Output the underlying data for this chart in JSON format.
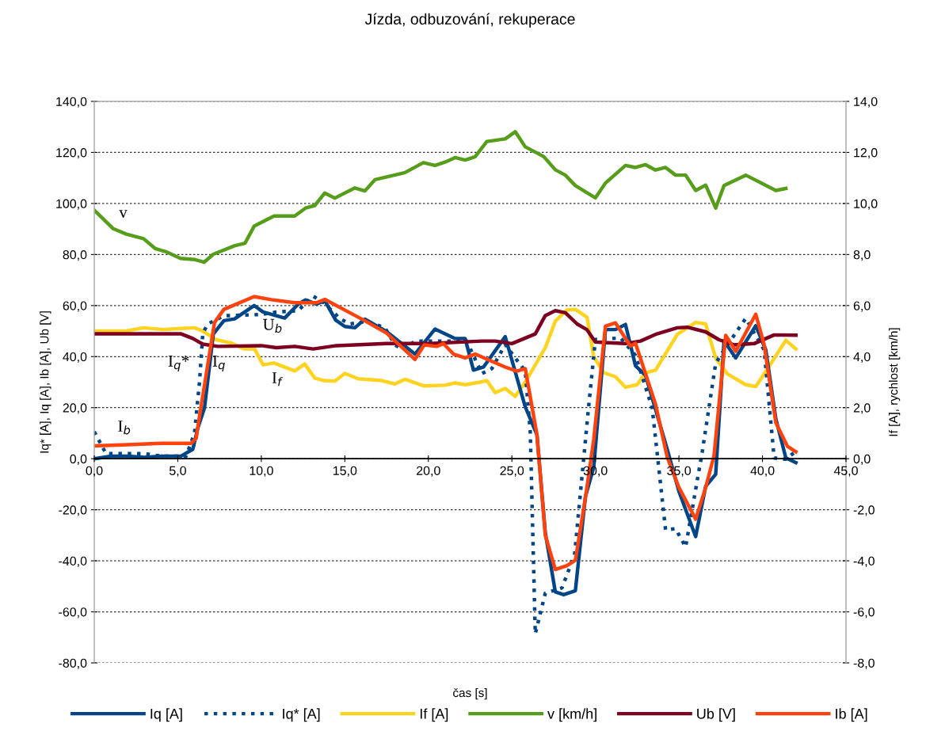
{
  "chart_data": {
    "type": "line",
    "title": "Jízda, odbuzování, rekuperace",
    "xlabel": "čas [s]",
    "ylabel": "Iq* [A], Iq [A], Ib [A], Ub [V]",
    "y2label": "If [A], rychlost [km/h]",
    "xlim": [
      0,
      45
    ],
    "xticks": [
      {
        "value": 0,
        "label": "0,0"
      },
      {
        "value": 5,
        "label": "5,0"
      },
      {
        "value": 10,
        "label": "10,0"
      },
      {
        "value": 15,
        "label": "15,0"
      },
      {
        "value": 20,
        "label": "20,0"
      },
      {
        "value": 25,
        "label": "25,0"
      },
      {
        "value": 30,
        "label": "30,0"
      },
      {
        "value": 35,
        "label": "35,0"
      },
      {
        "value": 40,
        "label": "40,0"
      },
      {
        "value": 45,
        "label": "45,0"
      }
    ],
    "ylim": [
      -80,
      140
    ],
    "yticks": [
      {
        "value": -80,
        "label": "-80,0"
      },
      {
        "value": -60,
        "label": "-60,0"
      },
      {
        "value": -40,
        "label": "-40,0"
      },
      {
        "value": -20,
        "label": "-20,0"
      },
      {
        "value": 0,
        "label": "0,0"
      },
      {
        "value": 20,
        "label": "20,0"
      },
      {
        "value": 40,
        "label": "40,0"
      },
      {
        "value": 60,
        "label": "60,0"
      },
      {
        "value": 80,
        "label": "80,0"
      },
      {
        "value": 100,
        "label": "100,0"
      },
      {
        "value": 120,
        "label": "120,0"
      },
      {
        "value": 140,
        "label": "140,0"
      }
    ],
    "y2lim": [
      -8,
      14
    ],
    "y2ticks": [
      {
        "value": -8,
        "label": "-8,0"
      },
      {
        "value": -6,
        "label": "-6,0"
      },
      {
        "value": -4,
        "label": "-4,0"
      },
      {
        "value": -2,
        "label": "-2,0"
      },
      {
        "value": 0,
        "label": "0,0"
      },
      {
        "value": 2,
        "label": "2,0"
      },
      {
        "value": 4,
        "label": "4,0"
      },
      {
        "value": 6,
        "label": "6,0"
      },
      {
        "value": 8,
        "label": "8,0"
      },
      {
        "value": 10,
        "label": "10,0"
      },
      {
        "value": 12,
        "label": "12,0"
      },
      {
        "value": 14,
        "label": "14,0"
      }
    ],
    "grid": true,
    "legend": "bottom",
    "marker": "none",
    "series": [
      {
        "name": "Iq [A]",
        "color": "#004586",
        "line_style": "solid",
        "x": [
          0,
          1,
          2,
          3,
          4,
          5.2,
          5.9,
          6.2,
          6.6,
          7.13,
          7.76,
          8.4,
          9.57,
          10.1,
          11.4,
          12.2,
          12.65,
          13.3,
          13.8,
          14.45,
          15.0,
          15.6,
          16.2,
          17.5,
          19.2,
          20.4,
          21.6,
          22.2,
          22.7,
          23.3,
          24.6,
          25.8,
          26.5,
          27.0,
          27.6,
          28.1,
          28.8,
          29.4,
          29.9,
          30.6,
          31.2,
          31.8,
          32.4,
          33.0,
          34.3,
          35.0,
          36.0,
          36.6,
          37.2,
          37.7,
          38.4,
          39.6,
          40.2,
          40.8,
          41.4,
          42.0
        ],
        "values": [
          0,
          1,
          1,
          0.5,
          1,
          1,
          3.7,
          12,
          20,
          48.9,
          54.1,
          54.8,
          60,
          57.5,
          55.1,
          60.5,
          62.2,
          60.6,
          61.9,
          54.3,
          51.8,
          51.3,
          54.7,
          49.8,
          41,
          50.8,
          47.1,
          47.1,
          34.7,
          35.9,
          47.8,
          20.3,
          9.4,
          -29,
          -52.2,
          -53.3,
          -51.7,
          -14.9,
          -3.3,
          50.6,
          50.6,
          52.6,
          36.4,
          32.7,
          3.7,
          -12.8,
          -30.5,
          -10.8,
          -6.1,
          46.2,
          39.5,
          52.1,
          42.6,
          15.6,
          0.3,
          -1.5
        ]
      },
      {
        "name": "Iq* [A]",
        "color": "#004586",
        "line_style": "dotted",
        "x": [
          0,
          0.7,
          2,
          3,
          4,
          5.5,
          6.0,
          6.3,
          6.5,
          6.8,
          7.76,
          10.0,
          10.9,
          12.2,
          13.1,
          13.75,
          14.7,
          15.3,
          16.3,
          17.4,
          18.0,
          18.5,
          19.2,
          20.1,
          22.3,
          23.2,
          23.8,
          24.6,
          25.8,
          26.1,
          26.4,
          27.0,
          28.0,
          28.75,
          29.6,
          30.0,
          31.5,
          32.4,
          33.4,
          34.2,
          34.8,
          35.4,
          36.4,
          37.2,
          37.7,
          39.0,
          40.1,
          40.7,
          41.4,
          42.0
        ],
        "values": [
          10.6,
          2,
          2,
          2,
          1,
          1,
          10,
          30,
          49.2,
          52.8,
          56,
          56.5,
          57.5,
          58,
          63.7,
          61.1,
          54.9,
          52.8,
          53.8,
          51.3,
          44.6,
          42.7,
          46.1,
          46.1,
          46.1,
          33.3,
          35.3,
          44.7,
          34.3,
          10.5,
          -68.6,
          -52.7,
          -50.6,
          -37.7,
          20.8,
          46.7,
          47.3,
          40.5,
          19.8,
          -27.9,
          -27.4,
          -34.6,
          2.9,
          37.4,
          42.6,
          55,
          42.6,
          0.3,
          -0.2,
          2.9
        ]
      },
      {
        "name": "If [A]",
        "color": "#ffd320",
        "line_style": "solid",
        "axis": "y2",
        "x": [
          0,
          1.9,
          2.95,
          4.1,
          5.2,
          6.0,
          6.5,
          7.3,
          8.15,
          9.0,
          9.6,
          10.1,
          10.76,
          12.0,
          12.6,
          13.2,
          13.75,
          14.4,
          15.0,
          15.8,
          17.2,
          18.0,
          18.6,
          19.75,
          21.0,
          21.6,
          22.2,
          23.1,
          23.5,
          24.0,
          24.6,
          25.2,
          25.8,
          27.0,
          27.6,
          28.3,
          28.8,
          29.5,
          29.9,
          30.5,
          31.2,
          31.8,
          32.5,
          33.0,
          33.6,
          34.9,
          36.0,
          36.6,
          37.2,
          37.9,
          39.0,
          39.6,
          40.3,
          41.4,
          42.0
        ],
        "values": [
          5.0,
          5.0,
          5.13,
          5.06,
          5.1,
          5.13,
          5.0,
          4.66,
          4.54,
          4.3,
          4.3,
          3.68,
          3.75,
          3.44,
          3.71,
          3.16,
          3.06,
          3.04,
          3.34,
          3.13,
          3.06,
          2.93,
          3.11,
          2.85,
          2.88,
          2.97,
          2.9,
          3.0,
          3.06,
          2.59,
          2.75,
          2.44,
          3.0,
          4.35,
          5.39,
          5.83,
          5.85,
          5.54,
          3.99,
          3.37,
          3.21,
          2.8,
          2.9,
          3.37,
          3.47,
          4.87,
          5.34,
          5.28,
          3.94,
          3.32,
          2.9,
          2.83,
          3.52,
          4.64,
          4.3
        ]
      },
      {
        "name": "v [km/h]",
        "color": "#579d1c",
        "line_style": "solid",
        "axis": "y2",
        "x": [
          0,
          1.14,
          1.92,
          2.95,
          3.66,
          4.29,
          5.16,
          6.03,
          6.58,
          7.13,
          8.39,
          9.02,
          9.57,
          10.76,
          12.0,
          12.65,
          13.2,
          13.8,
          14.4,
          15.6,
          16.2,
          16.8,
          18.6,
          19.7,
          20.4,
          21.0,
          21.6,
          22.2,
          22.8,
          23.5,
          24.6,
          25.2,
          25.8,
          26.9,
          27.6,
          28.2,
          28.8,
          30.0,
          30.6,
          31.8,
          32.4,
          33.0,
          33.6,
          34.2,
          34.8,
          35.4,
          36.0,
          36.6,
          37.2,
          37.7,
          39.0,
          40.8,
          41.4
        ],
        "values": [
          9.74,
          9.01,
          8.8,
          8.62,
          8.23,
          8.11,
          7.85,
          7.8,
          7.7,
          8.01,
          8.34,
          8.44,
          9.11,
          9.51,
          9.51,
          9.82,
          9.92,
          10.41,
          10.21,
          10.61,
          10.49,
          10.93,
          11.21,
          11.6,
          11.49,
          11.62,
          11.8,
          11.7,
          11.83,
          12.43,
          12.53,
          12.81,
          12.22,
          11.84,
          11.32,
          11.11,
          10.7,
          10.22,
          10.8,
          11.49,
          11.41,
          11.52,
          11.31,
          11.41,
          11.11,
          11.11,
          10.51,
          10.72,
          9.82,
          10.7,
          11.11,
          10.51,
          10.59
        ]
      },
      {
        "name": "Ub [V]",
        "color": "#7e0021",
        "line_style": "solid",
        "x": [
          0,
          5.2,
          5.9,
          6.5,
          7.4,
          10.0,
          10.9,
          12.0,
          13.1,
          14.5,
          17.5,
          20.1,
          23.2,
          24.0,
          25.0,
          26.4,
          27.0,
          27.6,
          28.2,
          28.9,
          29.5,
          30.0,
          31.8,
          32.7,
          33.6,
          34.9,
          35.5,
          36.6,
          37.4,
          38.3,
          39.5,
          40.7,
          42.0
        ],
        "values": [
          48.9,
          48.9,
          47.1,
          44.9,
          44,
          44.3,
          43.5,
          44,
          43,
          44.3,
          45.1,
          45.1,
          46.1,
          46.1,
          45.1,
          48.9,
          56.1,
          58,
          57.2,
          52.8,
          50.5,
          45.7,
          45.1,
          46.1,
          48.7,
          51.3,
          51.5,
          49.7,
          46.6,
          44.6,
          45.1,
          48.5,
          48.4
        ]
      },
      {
        "name": "Ib [A]",
        "color": "#ff420e",
        "line_style": "solid",
        "x": [
          0,
          2,
          4,
          5.2,
          5.8,
          6.1,
          6.2,
          7.2,
          7.76,
          9.57,
          10.6,
          12.0,
          13.3,
          13.8,
          15.5,
          16.1,
          17.5,
          19.2,
          19.75,
          20.5,
          20.9,
          21.5,
          22.2,
          22.8,
          24.6,
          25.3,
          25.8,
          26.5,
          27.0,
          27.6,
          28.3,
          28.8,
          29.4,
          29.9,
          30.6,
          31.2,
          32.1,
          32.4,
          33.6,
          34.3,
          35.0,
          36.0,
          36.6,
          37.1,
          37.8,
          38.4,
          39.6,
          40.1,
          40.8,
          41.5,
          42.0
        ],
        "values": [
          5,
          5.5,
          6,
          6,
          6,
          8,
          12.5,
          53.4,
          58.5,
          63.5,
          62.3,
          61.1,
          61.1,
          62.4,
          56.5,
          54.4,
          49.2,
          38.9,
          44.6,
          44,
          45.1,
          41,
          39.5,
          41,
          35.9,
          34.3,
          35.3,
          9.4,
          -30,
          -43.4,
          -41.9,
          -39.8,
          -15.4,
          7.5,
          51.9,
          53.2,
          44.1,
          45.2,
          21.3,
          0.6,
          -11.3,
          -23.7,
          -11.3,
          1.2,
          48.3,
          42.1,
          56.6,
          44.7,
          14.1,
          4.8,
          2.7
        ]
      }
    ],
    "annotations": [
      "v",
      "I$_{q}$*",
      "I$_{q}$",
      "I$_{f}$",
      "U$_{b}$",
      "I$_{b}$"
    ]
  }
}
